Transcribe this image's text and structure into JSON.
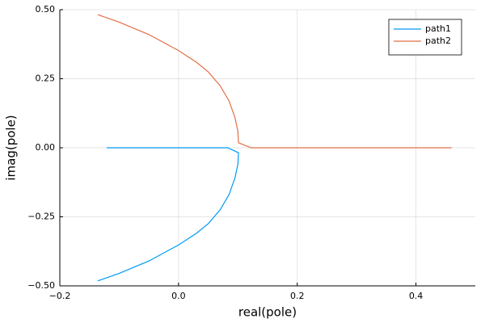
{
  "chart_data": {
    "type": "line",
    "x_label": "real(pole)",
    "y_label": "imag(pole)",
    "xlim": [
      -0.2,
      0.5
    ],
    "ylim": [
      -0.5,
      0.5
    ],
    "xticks": [
      {
        "value": -0.2,
        "label": "−0.2"
      },
      {
        "value": 0,
        "label": "0.0"
      },
      {
        "value": 0.2,
        "label": "0.2"
      },
      {
        "value": 0.4,
        "label": "0.4"
      }
    ],
    "yticks": [
      {
        "value": -0.5,
        "label": "−0.50"
      },
      {
        "value": -0.25,
        "label": "−0.25"
      },
      {
        "value": 0,
        "label": "0.00"
      },
      {
        "value": 0.25,
        "label": "0.25"
      },
      {
        "value": 0.5,
        "label": "0.50"
      }
    ],
    "grid": true,
    "legend": "top-right",
    "series": [
      {
        "name": "path1",
        "color": "#009af9",
        "x": [
          -0.121,
          0.083,
          0.101,
          0.1,
          0.095,
          0.085,
          0.07,
          0.05,
          0.03,
          0,
          -0.05,
          -0.1,
          -0.136
        ],
        "values": [
          0,
          0,
          -0.018,
          -0.06,
          -0.11,
          -0.17,
          -0.225,
          -0.275,
          -0.31,
          -0.352,
          -0.41,
          -0.455,
          -0.482
        ]
      },
      {
        "name": "path2",
        "color": "#e26f46",
        "x": [
          -0.136,
          -0.1,
          -0.05,
          0,
          0.03,
          0.05,
          0.07,
          0.085,
          0.095,
          0.1,
          0.101,
          0.1225,
          0.46
        ],
        "values": [
          0.482,
          0.455,
          0.41,
          0.352,
          0.31,
          0.275,
          0.225,
          0.17,
          0.11,
          0.06,
          0.018,
          0,
          0
        ]
      }
    ]
  }
}
